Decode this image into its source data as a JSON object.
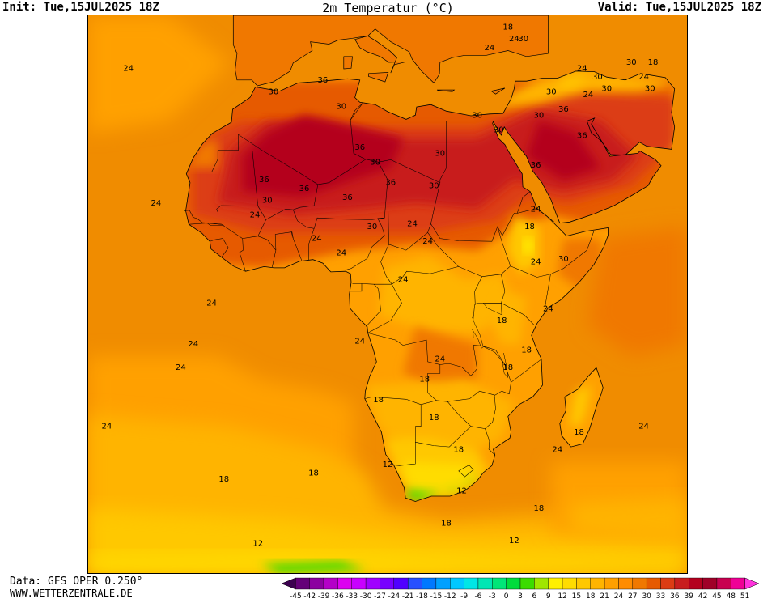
{
  "header": {
    "init": "Init: Tue,15JUL2025 18Z",
    "title": "2m Temperatur (°C)",
    "valid": "Valid: Tue,15JUL2025 18Z"
  },
  "footer": {
    "data_source": "Data: GFS OPER 0.250°",
    "website": "WWW.WETTERZENTRALE.DE"
  },
  "map": {
    "region": "Africa",
    "contour_labels": [
      {
        "text": "24",
        "lon": -26.5,
        "lat": 39.0
      },
      {
        "text": "24",
        "lon": -22.0,
        "lat": 16.0
      },
      {
        "text": "24",
        "lon": -13.0,
        "lat": -1.0
      },
      {
        "text": "24",
        "lon": -16.0,
        "lat": -8.0
      },
      {
        "text": "24",
        "lon": -18.0,
        "lat": -12.0
      },
      {
        "text": "24",
        "lon": -30.0,
        "lat": -22.0
      },
      {
        "text": "18",
        "lon": -11.0,
        "lat": -31.0
      },
      {
        "text": "18",
        "lon": 3.5,
        "lat": -30.0
      },
      {
        "text": "12",
        "lon": -5.5,
        "lat": -42.0
      },
      {
        "text": "36",
        "lon": 5.0,
        "lat": 37.0
      },
      {
        "text": "30",
        "lon": -3.0,
        "lat": 35.0
      },
      {
        "text": "30",
        "lon": 8.0,
        "lat": 32.5
      },
      {
        "text": "36",
        "lon": 11.0,
        "lat": 25.5
      },
      {
        "text": "36",
        "lon": -4.5,
        "lat": 20.0
      },
      {
        "text": "36",
        "lon": 2.0,
        "lat": 18.5
      },
      {
        "text": "36",
        "lon": 16.0,
        "lat": 19.5
      },
      {
        "text": "36",
        "lon": 9.0,
        "lat": 17.0
      },
      {
        "text": "30",
        "lon": 13.5,
        "lat": 23.0
      },
      {
        "text": "30",
        "lon": 24.0,
        "lat": 24.5
      },
      {
        "text": "30",
        "lon": 23.0,
        "lat": 19.0
      },
      {
        "text": "30",
        "lon": 30.0,
        "lat": 31.0
      },
      {
        "text": "30",
        "lon": 33.5,
        "lat": 28.5
      },
      {
        "text": "36",
        "lon": 39.5,
        "lat": 22.5
      },
      {
        "text": "30",
        "lon": -4.0,
        "lat": 16.5
      },
      {
        "text": "30",
        "lon": 13.0,
        "lat": 12.0
      },
      {
        "text": "24",
        "lon": -6.0,
        "lat": 14.0
      },
      {
        "text": "24",
        "lon": 4.0,
        "lat": 10.0
      },
      {
        "text": "24",
        "lon": 8.0,
        "lat": 7.5
      },
      {
        "text": "24",
        "lon": 19.5,
        "lat": 12.5
      },
      {
        "text": "24",
        "lon": 22.0,
        "lat": 9.5
      },
      {
        "text": "18",
        "lon": 38.5,
        "lat": 12.0
      },
      {
        "text": "24",
        "lon": 39.5,
        "lat": 15.0
      },
      {
        "text": "30",
        "lon": 44.0,
        "lat": 6.5
      },
      {
        "text": "24",
        "lon": 39.5,
        "lat": 6.0
      },
      {
        "text": "24",
        "lon": 18.0,
        "lat": 3.0
      },
      {
        "text": "24",
        "lon": 41.5,
        "lat": -2.0
      },
      {
        "text": "18",
        "lon": 34.0,
        "lat": -4.0
      },
      {
        "text": "24",
        "lon": 11.0,
        "lat": -7.5
      },
      {
        "text": "18",
        "lon": 38.0,
        "lat": -9.0
      },
      {
        "text": "24",
        "lon": 24.0,
        "lat": -10.5
      },
      {
        "text": "18",
        "lon": 35.0,
        "lat": -12.0
      },
      {
        "text": "18",
        "lon": 21.5,
        "lat": -14.0
      },
      {
        "text": "18",
        "lon": 14.0,
        "lat": -17.5
      },
      {
        "text": "18",
        "lon": 23.0,
        "lat": -20.5
      },
      {
        "text": "18",
        "lon": 27.0,
        "lat": -26.0
      },
      {
        "text": "18",
        "lon": 46.5,
        "lat": -23.0
      },
      {
        "text": "24",
        "lon": 43.0,
        "lat": -26.0
      },
      {
        "text": "24",
        "lon": 57.0,
        "lat": -22.0
      },
      {
        "text": "12",
        "lon": 15.5,
        "lat": -28.5
      },
      {
        "text": "12",
        "lon": 27.5,
        "lat": -33.0
      },
      {
        "text": "18",
        "lon": 25.0,
        "lat": -38.5
      },
      {
        "text": "18",
        "lon": 40.0,
        "lat": -36.0
      },
      {
        "text": "12",
        "lon": 36.0,
        "lat": -41.5
      },
      {
        "text": "18",
        "lon": 35.0,
        "lat": 46.0
      },
      {
        "text": "24",
        "lon": 36.0,
        "lat": 44.0
      },
      {
        "text": "30",
        "lon": 37.5,
        "lat": 44.0
      },
      {
        "text": "24",
        "lon": 32.0,
        "lat": 42.5
      },
      {
        "text": "30",
        "lon": 55.0,
        "lat": 40.0
      },
      {
        "text": "18",
        "lon": 58.5,
        "lat": 40.0
      },
      {
        "text": "24",
        "lon": 47.0,
        "lat": 39.0
      },
      {
        "text": "30",
        "lon": 49.5,
        "lat": 37.5
      },
      {
        "text": "24",
        "lon": 57.0,
        "lat": 37.5
      },
      {
        "text": "30",
        "lon": 51.0,
        "lat": 35.5
      },
      {
        "text": "30",
        "lon": 58.0,
        "lat": 35.5
      },
      {
        "text": "24",
        "lon": 48.0,
        "lat": 34.5
      },
      {
        "text": "30",
        "lon": 42.0,
        "lat": 35.0
      },
      {
        "text": "30",
        "lon": 40.0,
        "lat": 31.0
      },
      {
        "text": "36",
        "lon": 44.0,
        "lat": 32.0
      },
      {
        "text": "36",
        "lon": 47.0,
        "lat": 27.5
      }
    ]
  },
  "legend": {
    "values": [
      "-45",
      "-42",
      "-39",
      "-36",
      "-33",
      "-30",
      "-27",
      "-24",
      "-21",
      "-18",
      "-15",
      "-12",
      "-9",
      "-6",
      "-3",
      "0",
      "3",
      "6",
      "9",
      "12",
      "15",
      "18",
      "21",
      "24",
      "27",
      "30",
      "33",
      "36",
      "39",
      "42",
      "45",
      "48",
      "51"
    ],
    "colors": [
      "#3c0050",
      "#640078",
      "#8c00a0",
      "#b400c8",
      "#dc00f0",
      "#c800ff",
      "#a000ff",
      "#7800ff",
      "#5000ff",
      "#2850ff",
      "#0078ff",
      "#00a0ff",
      "#00c8ff",
      "#00e6e6",
      "#00e6b4",
      "#00e678",
      "#00dc3c",
      "#3cdc00",
      "#a0e600",
      "#fff000",
      "#ffdc00",
      "#ffc800",
      "#ffb400",
      "#ffa000",
      "#ff8c00",
      "#f07800",
      "#e65a00",
      "#dc3c14",
      "#c81e1e",
      "#b4001e",
      "#a00028",
      "#c80050",
      "#f00096",
      "#ff32dc"
    ]
  }
}
